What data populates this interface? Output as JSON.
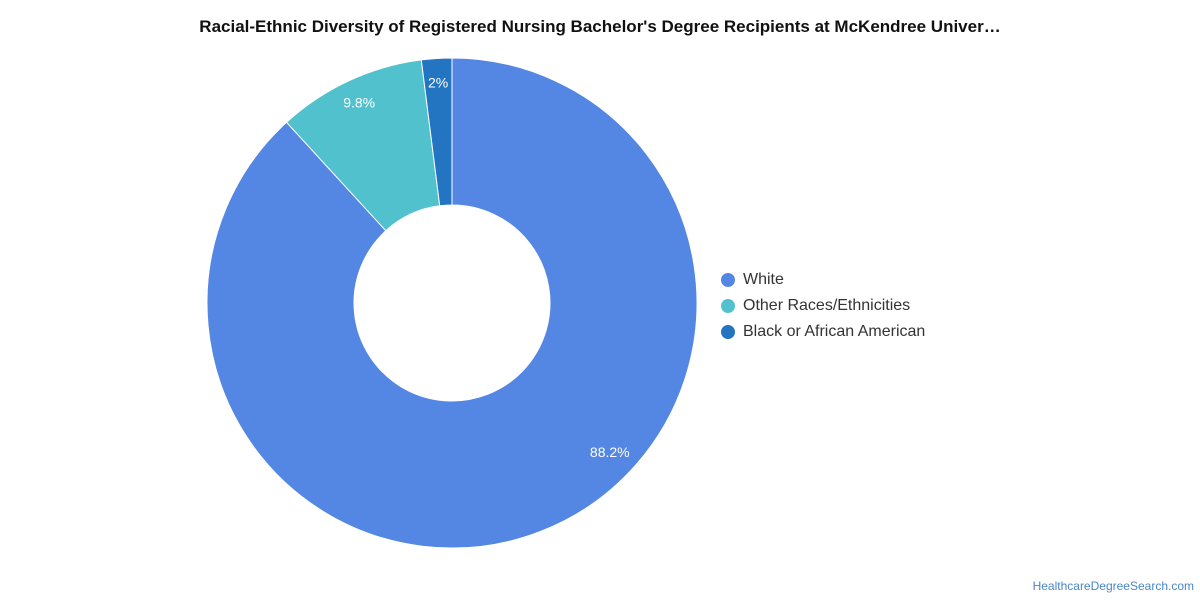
{
  "chart_data": {
    "type": "pie",
    "title": "Racial-Ethnic Diversity of Registered Nursing Bachelor's Degree Recipients at McKendree Univer…",
    "donut": true,
    "legend_position": "right",
    "slices": [
      {
        "label": "White",
        "value": 88.2,
        "display": "88.2%",
        "color": "#5486e3"
      },
      {
        "label": "Other Races/Ethnicities",
        "value": 9.8,
        "display": "9.8%",
        "color": "#52c1ce"
      },
      {
        "label": "Black or African American",
        "value": 2.0,
        "display": "2%",
        "color": "#2374c1"
      }
    ]
  },
  "source": "HealthcareDegreeSearch.com"
}
